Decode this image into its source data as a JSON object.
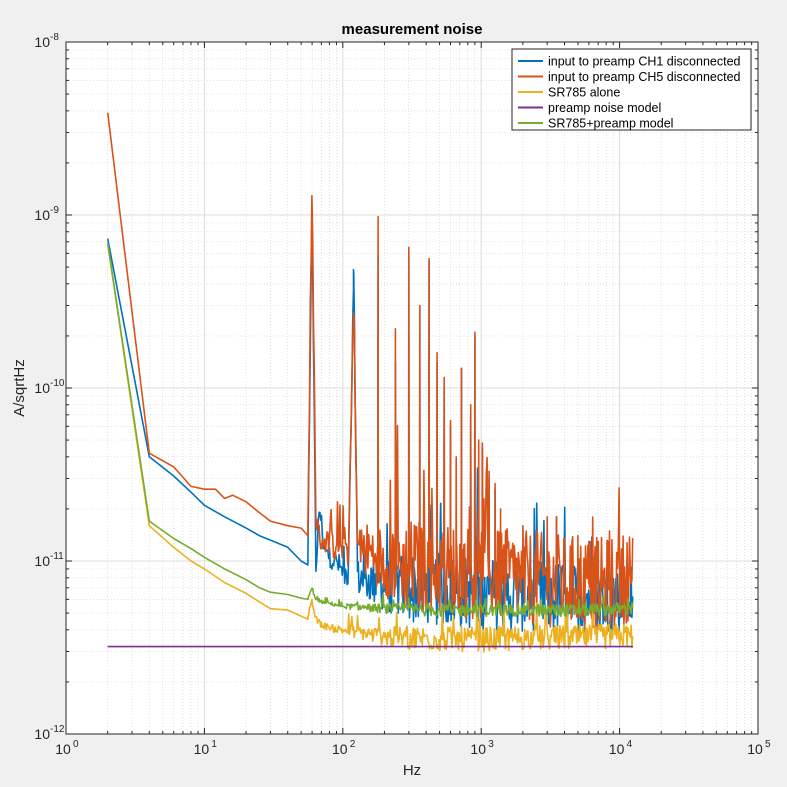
{
  "chart_data": {
    "type": "line",
    "title": "measurement noise",
    "xlabel": "Hz",
    "ylabel": "A/sqrtHz",
    "xscale": "log",
    "yscale": "log",
    "xlim": [
      1,
      100000
    ],
    "ylim": [
      1e-12,
      1e-08
    ],
    "xticks": [
      {
        "base": "10",
        "exp": "0"
      },
      {
        "base": "10",
        "exp": "1"
      },
      {
        "base": "10",
        "exp": "2"
      },
      {
        "base": "10",
        "exp": "3"
      },
      {
        "base": "10",
        "exp": "4"
      },
      {
        "base": "10",
        "exp": "5"
      }
    ],
    "yticks": [
      {
        "base": "10",
        "exp": "-12"
      },
      {
        "base": "10",
        "exp": "-11"
      },
      {
        "base": "10",
        "exp": "-10"
      },
      {
        "base": "10",
        "exp": "-9"
      },
      {
        "base": "10",
        "exp": "-8"
      }
    ],
    "grid": true,
    "legend_position": "top-right",
    "series": [
      {
        "name": "input to preamp CH1 disconnected",
        "color": "#0072BD",
        "points": [
          [
            2,
            7.3e-10
          ],
          [
            4,
            4e-11
          ],
          [
            6,
            3.1e-11
          ],
          [
            8,
            2.5e-11
          ],
          [
            10,
            2.1e-11
          ],
          [
            14,
            1.8e-11
          ],
          [
            20,
            1.55e-11
          ],
          [
            25,
            1.4e-11
          ],
          [
            30,
            1.32e-11
          ],
          [
            40,
            1.2e-11
          ],
          [
            50,
            1e-11
          ],
          [
            56,
            9.5e-12
          ],
          [
            60,
            1.2e-09
          ],
          [
            64,
            8.5e-12
          ],
          [
            68,
            2.2e-11
          ],
          [
            72,
            1.2e-11
          ],
          [
            80,
            1.05e-11
          ],
          [
            90,
            1e-11
          ],
          [
            100,
            8.5e-12
          ],
          [
            110,
            8.2e-12
          ],
          [
            120,
            4.5e-10
          ],
          [
            128,
            8e-12
          ],
          [
            150,
            7.8e-12
          ],
          [
            170,
            7.6e-12
          ],
          [
            180,
            7.5e-12
          ],
          [
            200,
            7.4e-12
          ],
          [
            240,
            7.2e-12
          ],
          [
            300,
            7e-12
          ],
          [
            400,
            6.9e-12
          ],
          [
            500,
            6.8e-12
          ],
          [
            700,
            6.6e-12
          ],
          [
            1000,
            6.5e-12
          ],
          [
            1500,
            6.3e-12
          ],
          [
            2000,
            6.3e-12
          ],
          [
            3000,
            6.2e-12
          ],
          [
            5000,
            6.2e-12
          ],
          [
            8000,
            6.2e-12
          ],
          [
            10000,
            6.3e-12
          ],
          [
            12500,
            6.5e-12
          ]
        ],
        "spikes": [
          [
            120,
            4.5e-10
          ],
          [
            180,
            5.8e-10
          ],
          [
            240,
            1.4e-10
          ],
          [
            300,
            6.2e-10
          ],
          [
            360,
            2.9e-10
          ],
          [
            420,
            5.4e-10
          ],
          [
            480,
            1.4e-10
          ],
          [
            540,
            1e-10
          ],
          [
            600,
            6e-11
          ],
          [
            720,
            1.3e-10
          ],
          [
            840,
            7e-11
          ],
          [
            900,
            2e-10
          ],
          [
            1020,
            4.5e-11
          ],
          [
            1140,
            3e-11
          ],
          [
            1260,
            2.6e-11
          ],
          [
            1500,
            1.4e-11
          ],
          [
            2000,
            1.5e-11
          ],
          [
            2500,
            1.4e-11
          ],
          [
            3000,
            1.5e-11
          ],
          [
            3500,
            1.8e-11
          ],
          [
            4500,
            1.2e-11
          ]
        ],
        "noise": 0.35
      },
      {
        "name": "input to preamp CH5 disconnected",
        "color": "#D95319",
        "points": [
          [
            2,
            3.9e-09
          ],
          [
            4,
            4.2e-11
          ],
          [
            6,
            3.5e-11
          ],
          [
            8,
            2.7e-11
          ],
          [
            10,
            2.6e-11
          ],
          [
            12,
            2.6e-11
          ],
          [
            14,
            2.3e-11
          ],
          [
            16,
            2.4e-11
          ],
          [
            20,
            2.2e-11
          ],
          [
            25,
            1.9e-11
          ],
          [
            30,
            1.7e-11
          ],
          [
            40,
            1.6e-11
          ],
          [
            50,
            1.55e-11
          ],
          [
            56,
            1.4e-11
          ],
          [
            60,
            1.45e-09
          ],
          [
            64,
            1.8e-11
          ],
          [
            68,
            1.35e-11
          ],
          [
            72,
            1.3e-11
          ],
          [
            80,
            1.3e-11
          ],
          [
            90,
            1.2e-11
          ],
          [
            100,
            1.3e-11
          ],
          [
            110,
            1.15e-11
          ],
          [
            120,
            3.2e-10
          ],
          [
            128,
            1.2e-11
          ],
          [
            150,
            1.15e-11
          ],
          [
            170,
            1.1e-11
          ],
          [
            200,
            1e-11
          ],
          [
            300,
            9.5e-12
          ],
          [
            500,
            9e-12
          ],
          [
            1000,
            8.5e-12
          ],
          [
            2000,
            8e-12
          ],
          [
            3000,
            7.8e-12
          ],
          [
            5000,
            7.5e-12
          ],
          [
            8000,
            7.3e-12
          ],
          [
            10000,
            7.5e-12
          ],
          [
            12500,
            9e-12
          ]
        ],
        "spikes": [
          [
            180,
            9.8e-10
          ],
          [
            240,
            2.2e-10
          ],
          [
            300,
            6.5e-10
          ],
          [
            360,
            3e-10
          ],
          [
            420,
            5.6e-10
          ],
          [
            480,
            1.6e-10
          ],
          [
            540,
            1.15e-10
          ],
          [
            600,
            6.5e-11
          ],
          [
            660,
            4e-11
          ],
          [
            720,
            1.3e-10
          ],
          [
            840,
            8e-11
          ],
          [
            900,
            2.1e-10
          ],
          [
            960,
            5e-11
          ],
          [
            1020,
            4.8e-11
          ],
          [
            1140,
            3.3e-11
          ],
          [
            1260,
            2.8e-11
          ],
          [
            1380,
            2e-11
          ],
          [
            1500,
            1.5e-11
          ],
          [
            2000,
            1.6e-11
          ],
          [
            2500,
            1.5e-11
          ],
          [
            3000,
            1.8e-11
          ],
          [
            3500,
            1.8e-11
          ],
          [
            4000,
            1.3e-11
          ],
          [
            5000,
            1.4e-11
          ],
          [
            6000,
            1.3e-11
          ],
          [
            7000,
            1.2e-11
          ]
        ],
        "noise": 0.45
      },
      {
        "name": "SR785 alone",
        "color": "#EDB120",
        "points": [
          [
            2,
            6.8e-10
          ],
          [
            4,
            1.6e-11
          ],
          [
            6,
            1.2e-11
          ],
          [
            8,
            1e-11
          ],
          [
            10,
            9e-12
          ],
          [
            14,
            7.5e-12
          ],
          [
            20,
            6.5e-12
          ],
          [
            25,
            5.8e-12
          ],
          [
            30,
            5.3e-12
          ],
          [
            40,
            5.2e-12
          ],
          [
            50,
            4.8e-12
          ],
          [
            56,
            4.6e-12
          ],
          [
            60,
            5.8e-12
          ],
          [
            64,
            4.6e-12
          ],
          [
            70,
            4.3e-12
          ],
          [
            80,
            4.1e-12
          ],
          [
            100,
            4e-12
          ],
          [
            150,
            3.8e-12
          ],
          [
            200,
            3.65e-12
          ],
          [
            300,
            3.6e-12
          ],
          [
            500,
            3.55e-12
          ],
          [
            1000,
            3.5e-12
          ],
          [
            2000,
            3.6e-12
          ],
          [
            5000,
            3.6e-12
          ],
          [
            10000,
            3.7e-12
          ],
          [
            12500,
            3.7e-12
          ]
        ],
        "spikes": [],
        "noise": 0.12
      },
      {
        "name": "preamp noise model",
        "color": "#7E2F8E",
        "points": [
          [
            2,
            3.2e-12
          ],
          [
            12500,
            3.2e-12
          ]
        ],
        "spikes": [],
        "noise": 0
      },
      {
        "name": "SR785+preamp model",
        "color": "#77AC30",
        "points": [
          [
            2,
            6.9e-10
          ],
          [
            4,
            1.7e-11
          ],
          [
            6,
            1.35e-11
          ],
          [
            8,
            1.18e-11
          ],
          [
            10,
            1.05e-11
          ],
          [
            14,
            9e-12
          ],
          [
            20,
            7.8e-12
          ],
          [
            25,
            7e-12
          ],
          [
            30,
            6.6e-12
          ],
          [
            40,
            6.4e-12
          ],
          [
            50,
            6.1e-12
          ],
          [
            56,
            6e-12
          ],
          [
            60,
            7e-12
          ],
          [
            64,
            6e-12
          ],
          [
            70,
            5.8e-12
          ],
          [
            100,
            5.5e-12
          ],
          [
            200,
            5.3e-12
          ],
          [
            500,
            5.2e-12
          ],
          [
            1000,
            5.2e-12
          ],
          [
            2000,
            5.2e-12
          ],
          [
            5000,
            5.2e-12
          ],
          [
            10000,
            5.3e-12
          ],
          [
            12500,
            5.3e-12
          ]
        ],
        "spikes": [],
        "noise": 0.06
      }
    ]
  }
}
